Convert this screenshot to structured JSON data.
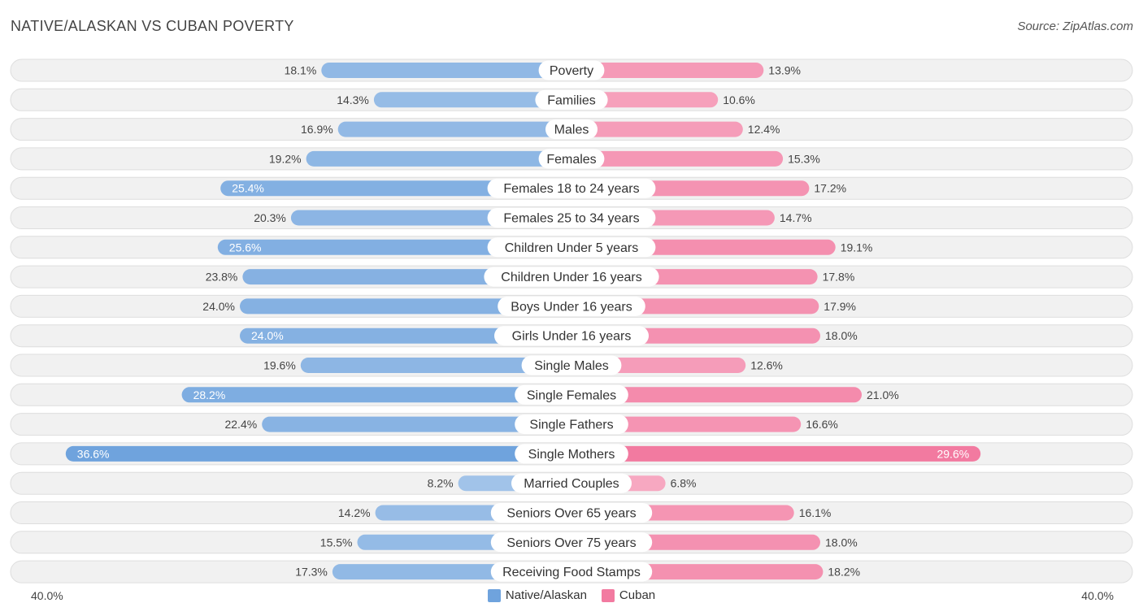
{
  "title": "NATIVE/ALASKAN VS CUBAN POVERTY",
  "source": "Source: ZipAtlas.com",
  "axis": {
    "left_label": "40.0%",
    "right_label": "40.0%"
  },
  "legend": [
    {
      "label": "Native/Alaskan",
      "color": "#6fa3dd"
    },
    {
      "label": "Cuban",
      "color": "#f27aa0"
    }
  ],
  "chart_data": {
    "type": "bar",
    "orientation": "horizontal-diverging",
    "title": "NATIVE/ALASKAN VS CUBAN POVERTY",
    "xlim": [
      0,
      40
    ],
    "unit": "%",
    "categories": [
      "Poverty",
      "Families",
      "Males",
      "Females",
      "Females 18 to 24 years",
      "Females 25 to 34 years",
      "Children Under 5 years",
      "Children Under 16 years",
      "Boys Under 16 years",
      "Girls Under 16 years",
      "Single Males",
      "Single Females",
      "Single Fathers",
      "Single Mothers",
      "Married Couples",
      "Seniors Over 65 years",
      "Seniors Over 75 years",
      "Receiving Food Stamps"
    ],
    "series": [
      {
        "name": "Native/Alaskan",
        "color": "#6fa3dd",
        "values": [
          18.1,
          14.3,
          16.9,
          19.2,
          25.4,
          20.3,
          25.6,
          23.8,
          24.0,
          24.0,
          19.6,
          28.2,
          22.4,
          36.6,
          8.2,
          14.2,
          15.5,
          17.3
        ],
        "labels": [
          "18.1%",
          "14.3%",
          "16.9%",
          "19.2%",
          "25.4%",
          "20.3%",
          "25.6%",
          "23.8%",
          "24.0%",
          "24.0%",
          "19.6%",
          "28.2%",
          "22.4%",
          "36.6%",
          "8.2%",
          "14.2%",
          "15.5%",
          "17.3%"
        ]
      },
      {
        "name": "Cuban",
        "color": "#f27aa0",
        "values": [
          13.9,
          10.6,
          12.4,
          15.3,
          17.2,
          14.7,
          19.1,
          17.8,
          17.9,
          18.0,
          12.6,
          21.0,
          16.6,
          29.6,
          6.8,
          16.1,
          18.0,
          18.2
        ],
        "labels": [
          "13.9%",
          "10.6%",
          "12.4%",
          "15.3%",
          "17.2%",
          "14.7%",
          "19.1%",
          "17.8%",
          "17.9%",
          "18.0%",
          "12.6%",
          "21.0%",
          "16.6%",
          "29.6%",
          "6.8%",
          "16.1%",
          "18.0%",
          "18.2%"
        ]
      }
    ]
  }
}
